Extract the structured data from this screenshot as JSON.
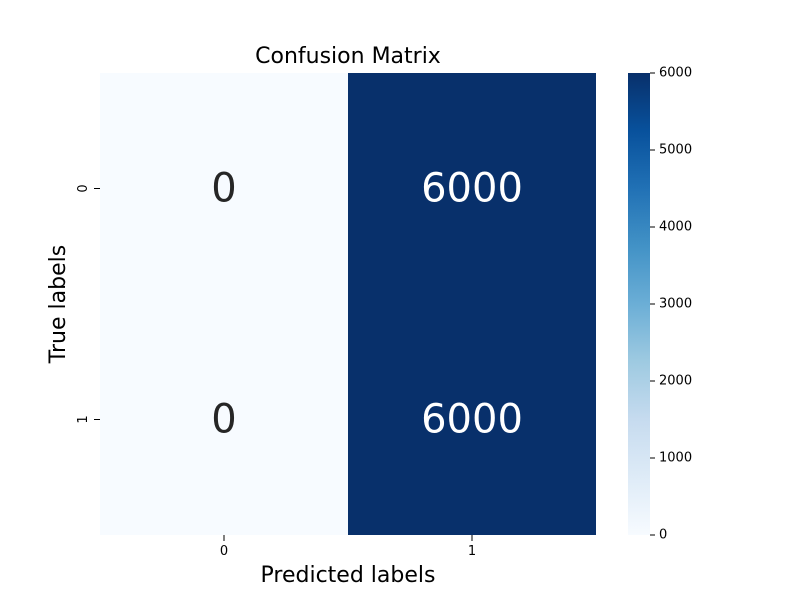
{
  "chart_data": {
    "type": "heatmap",
    "title": "Confusion Matrix",
    "xlabel": "Predicted labels",
    "ylabel": "True labels",
    "x_categories": [
      "0",
      "1"
    ],
    "y_categories": [
      "0",
      "1"
    ],
    "values": [
      [
        0,
        6000
      ],
      [
        0,
        6000
      ]
    ],
    "colormap": "Blues",
    "colormap_low": "#f7fbff",
    "colormap_high": "#08306b",
    "text_color_light_cell": "#262626",
    "text_color_dark_cell": "#ffffff",
    "colorbar": {
      "min": 0,
      "max": 6000,
      "ticks": [
        "0",
        "1000",
        "2000",
        "3000",
        "4000",
        "5000",
        "6000"
      ]
    }
  }
}
